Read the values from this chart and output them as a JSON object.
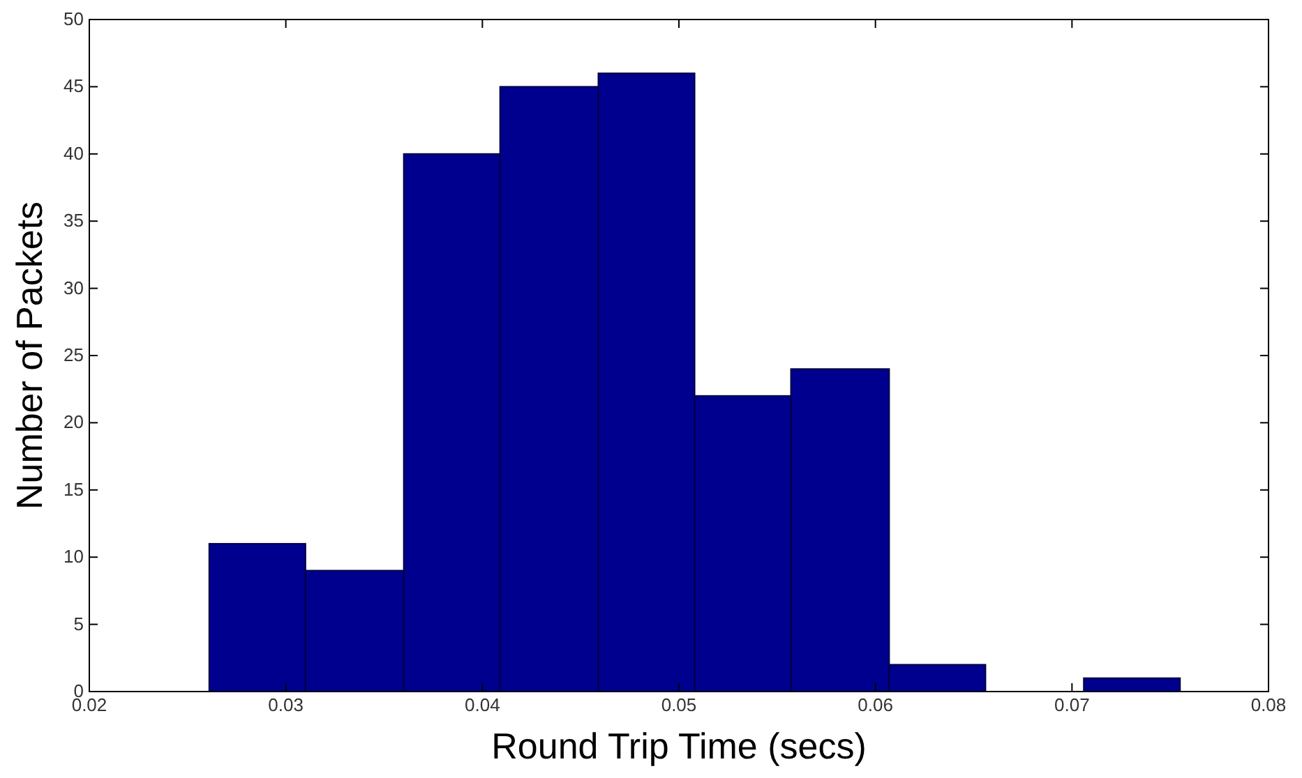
{
  "chart_data": {
    "type": "histogram",
    "xlabel": "Round Trip Time (secs)",
    "ylabel": "Number of Packets",
    "bins": [
      0.0261,
      0.031,
      0.036,
      0.0409,
      0.0459,
      0.0508,
      0.0557,
      0.0607,
      0.0656,
      0.0706,
      0.0755
    ],
    "values": [
      11,
      9,
      40,
      45,
      46,
      22,
      24,
      2,
      0,
      1
    ],
    "color": "#00008f",
    "xlim": [
      0.02,
      0.08
    ],
    "xticks": [
      0.02,
      0.03,
      0.04,
      0.05,
      0.06,
      0.07,
      0.08
    ],
    "ylim": [
      0,
      50
    ],
    "yticks": [
      0,
      5,
      10,
      15,
      20,
      25,
      30,
      35,
      40,
      45,
      50
    ],
    "grid": false
  }
}
